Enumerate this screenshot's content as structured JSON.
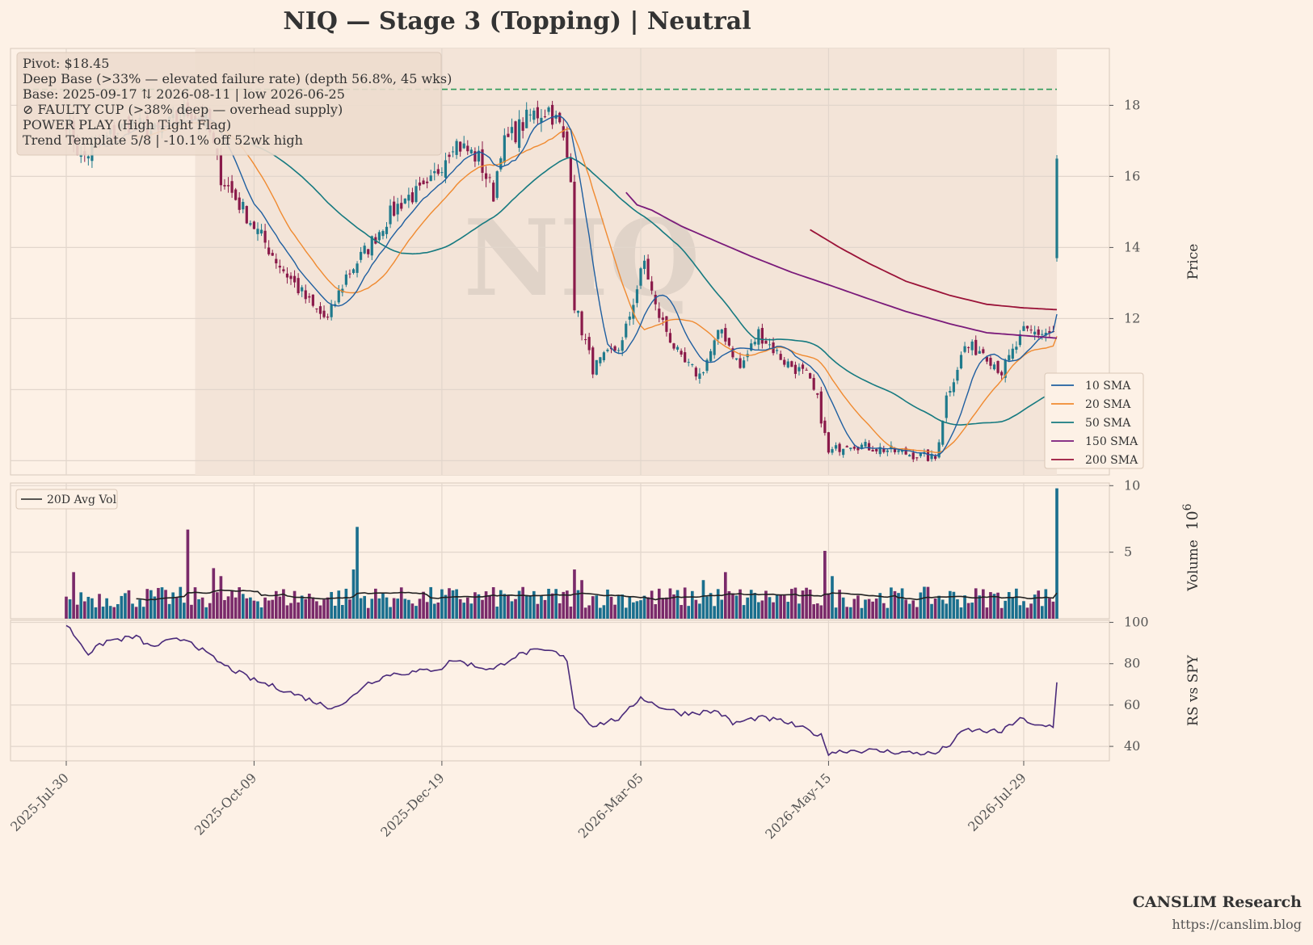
{
  "title": "NIQ  —  Stage 3 (Topping)  |  Neutral",
  "watermark": "NIQ",
  "info_box": [
    "Pivot: $18.45",
    "Deep Base (>33% — elevated failure rate)  (depth 56.8%, 45 wks)",
    "Base: 2025-09-17 ⇅ 2026-08-11  |  low 2026-06-25",
    "⊘ FAULTY CUP (>38% deep — overhead supply)",
    "POWER PLAY (High Tight Flag)",
    "Trend Template 5/8  |  -10.1% off 52wk high"
  ],
  "footer": {
    "brand": "CANSLIM Research",
    "url": "https://canslim.blog"
  },
  "colors": {
    "background": "#fdf1e6",
    "base_shade": "#f3e4d8",
    "candle_up": "#1f7a8c",
    "candle_down": "#8a1a4a",
    "vol_up": "#1a6f8e",
    "vol_down": "#7a2a6a",
    "pivot_line": "#2e9a5a",
    "sma10": "#1f5fa0",
    "sma20": "#f08a30",
    "sma50": "#167a80",
    "sma150": "#7a1a7a",
    "sma200": "#9a1238",
    "avgvol": "#222222",
    "rs": "#4a2a7a"
  },
  "chart_data": [
    {
      "type": "candlestick",
      "name": "price",
      "ylabel": "Price",
      "ylim": [
        7.6,
        19.6
      ],
      "yticks": [
        8,
        10,
        12,
        14,
        16,
        18
      ],
      "x_range": [
        "2025-07-30",
        "2026-08-11"
      ],
      "xticks": [
        "2025-Jul-30",
        "2025-Oct-09",
        "2025-Dec-19",
        "2026-Mar-05",
        "2026-May-15",
        "2026-Jul-29"
      ],
      "pivot": 18.45,
      "base_period": [
        "2025-09-17",
        "2026-08-11"
      ],
      "anchors": [
        [
          "2025-07-30",
          17.6
        ],
        [
          "2025-08-05",
          16.5
        ],
        [
          "2025-08-13",
          17.0
        ],
        [
          "2025-08-22",
          17.5
        ],
        [
          "2025-09-03",
          17.2
        ],
        [
          "2025-09-15",
          17.8
        ],
        [
          "2025-09-22",
          17.6
        ],
        [
          "2025-09-26",
          16.0
        ],
        [
          "2025-10-09",
          14.6
        ],
        [
          "2025-10-20",
          13.5
        ],
        [
          "2025-11-01",
          12.3
        ],
        [
          "2025-11-06",
          11.95
        ],
        [
          "2025-11-13",
          13.2
        ],
        [
          "2025-11-21",
          14.0
        ],
        [
          "2025-11-28",
          14.8
        ],
        [
          "2025-12-05",
          15.4
        ],
        [
          "2025-12-15",
          15.6
        ],
        [
          "2025-12-24",
          17.0
        ],
        [
          "2026-01-02",
          16.5
        ],
        [
          "2026-01-08",
          15.5
        ],
        [
          "2026-01-12",
          16.8
        ],
        [
          "2026-01-22",
          17.7
        ],
        [
          "2026-01-29",
          17.9
        ],
        [
          "2026-02-03",
          17.4
        ],
        [
          "2026-02-06",
          16.1
        ],
        [
          "2026-02-09",
          12.4
        ],
        [
          "2026-02-16",
          10.6
        ],
        [
          "2026-02-26",
          11.3
        ],
        [
          "2026-03-03",
          12.5
        ],
        [
          "2026-03-06",
          13.6
        ],
        [
          "2026-03-11",
          12.3
        ],
        [
          "2026-03-20",
          10.8
        ],
        [
          "2026-03-27",
          10.4
        ],
        [
          "2026-04-03",
          11.5
        ],
        [
          "2026-04-06",
          11.7
        ],
        [
          "2026-04-13",
          10.6
        ],
        [
          "2026-04-20",
          11.6
        ],
        [
          "2026-04-29",
          10.8
        ],
        [
          "2026-05-07",
          10.4
        ],
        [
          "2026-05-12",
          9.7
        ],
        [
          "2026-05-15",
          8.2
        ],
        [
          "2026-05-22",
          8.5
        ],
        [
          "2026-05-29",
          8.4
        ],
        [
          "2026-06-08",
          8.3
        ],
        [
          "2026-06-25",
          8.05
        ],
        [
          "2026-06-30",
          9.8
        ],
        [
          "2026-07-07",
          11.2
        ],
        [
          "2026-07-14",
          11.1
        ],
        [
          "2026-07-21",
          10.5
        ],
        [
          "2026-07-29",
          11.6
        ],
        [
          "2026-08-10",
          11.6
        ],
        [
          "2026-08-11",
          16.5
        ]
      ],
      "last_bar": {
        "date": "2026-08-11",
        "open": 13.7,
        "close": 16.5,
        "high": 16.6,
        "low": 13.6
      },
      "sma_last": {
        "10 SMA": 12.1,
        "20 SMA": 11.4,
        "50 SMA": 9.3
      },
      "sma150": [
        [
          "2026-02-27",
          15.55
        ],
        [
          "2026-03-04",
          15.2
        ],
        [
          "2026-03-10",
          15.05
        ],
        [
          "2026-03-20",
          14.6
        ],
        [
          "2026-04-03",
          14.15
        ],
        [
          "2026-04-16",
          13.75
        ],
        [
          "2026-05-01",
          13.3
        ],
        [
          "2026-05-15",
          12.95
        ],
        [
          "2026-06-01",
          12.55
        ],
        [
          "2026-06-15",
          12.2
        ],
        [
          "2026-07-01",
          11.85
        ],
        [
          "2026-07-15",
          11.6
        ],
        [
          "2026-08-11",
          11.45
        ]
      ],
      "sma200": [
        [
          "2026-05-08",
          14.5
        ],
        [
          "2026-05-20",
          14.0
        ],
        [
          "2026-06-01",
          13.55
        ],
        [
          "2026-06-15",
          13.05
        ],
        [
          "2026-07-01",
          12.65
        ],
        [
          "2026-07-15",
          12.4
        ],
        [
          "2026-07-29",
          12.3
        ],
        [
          "2026-08-11",
          12.25
        ]
      ],
      "legend": [
        "10 SMA",
        "20 SMA",
        "50 SMA",
        "150 SMA",
        "200 SMA"
      ],
      "legend_position": "lower-right"
    },
    {
      "type": "bar",
      "name": "volume",
      "ylabel": "Volume",
      "unit_label": "10",
      "unit_exp": "6",
      "ylim": [
        0,
        10.2
      ],
      "yticks": [
        5,
        10
      ],
      "spikes": [
        [
          "2025-08-01",
          3.5
        ],
        [
          "2025-09-15",
          6.7
        ],
        [
          "2025-09-24",
          3.8
        ],
        [
          "2025-09-26",
          3.2
        ],
        [
          "2025-11-17",
          3.7
        ],
        [
          "2025-11-18",
          6.9
        ],
        [
          "2026-02-09",
          3.7
        ],
        [
          "2026-02-11",
          2.9
        ],
        [
          "2026-03-30",
          2.9
        ],
        [
          "2026-04-07",
          3.5
        ],
        [
          "2026-05-14",
          5.1
        ],
        [
          "2026-05-18",
          3.2
        ],
        [
          "2026-08-11",
          9.8
        ]
      ],
      "last_value": 9.8,
      "legend": [
        "20D Avg Vol"
      ],
      "legend_position": "upper-left"
    },
    {
      "type": "line",
      "name": "rs",
      "ylabel": "RS vs SPY",
      "ylim": [
        33,
        101
      ],
      "yticks": [
        40,
        60,
        80,
        100
      ],
      "anchors": [
        [
          "2025-07-30",
          99
        ],
        [
          "2025-08-07",
          85
        ],
        [
          "2025-08-14",
          91
        ],
        [
          "2025-08-26",
          93
        ],
        [
          "2025-09-01",
          88
        ],
        [
          "2025-09-08",
          91
        ],
        [
          "2025-09-15",
          92
        ],
        [
          "2025-09-22",
          85
        ],
        [
          "2025-09-29",
          79
        ],
        [
          "2025-10-09",
          72
        ],
        [
          "2025-10-20",
          68
        ],
        [
          "2025-11-01",
          62
        ],
        [
          "2025-11-06",
          59
        ],
        [
          "2025-11-13",
          61
        ],
        [
          "2025-11-20",
          70
        ],
        [
          "2025-12-01",
          75
        ],
        [
          "2025-12-10",
          76
        ],
        [
          "2025-12-19",
          78
        ],
        [
          "2025-12-24",
          82
        ],
        [
          "2026-01-01",
          79
        ],
        [
          "2026-01-08",
          77
        ],
        [
          "2026-01-15",
          83
        ],
        [
          "2026-01-22",
          86
        ],
        [
          "2026-01-30",
          86
        ],
        [
          "2026-02-05",
          82
        ],
        [
          "2026-02-09",
          59
        ],
        [
          "2026-02-16",
          50
        ],
        [
          "2026-02-26",
          54
        ],
        [
          "2026-03-05",
          64
        ],
        [
          "2026-03-11",
          60
        ],
        [
          "2026-03-20",
          56
        ],
        [
          "2026-04-03",
          57
        ],
        [
          "2026-04-09",
          51
        ],
        [
          "2026-04-20",
          54
        ],
        [
          "2026-04-29",
          52
        ],
        [
          "2026-05-07",
          48
        ],
        [
          "2026-05-13",
          45
        ],
        [
          "2026-05-15",
          37
        ],
        [
          "2026-05-22",
          38
        ],
        [
          "2026-06-01",
          38
        ],
        [
          "2026-06-15",
          37
        ],
        [
          "2026-06-25",
          36.5
        ],
        [
          "2026-07-01",
          41
        ],
        [
          "2026-07-07",
          48
        ],
        [
          "2026-07-21",
          47
        ],
        [
          "2026-07-28",
          54
        ],
        [
          "2026-07-31",
          50
        ],
        [
          "2026-08-10",
          50
        ],
        [
          "2026-08-11",
          71
        ]
      ]
    }
  ]
}
